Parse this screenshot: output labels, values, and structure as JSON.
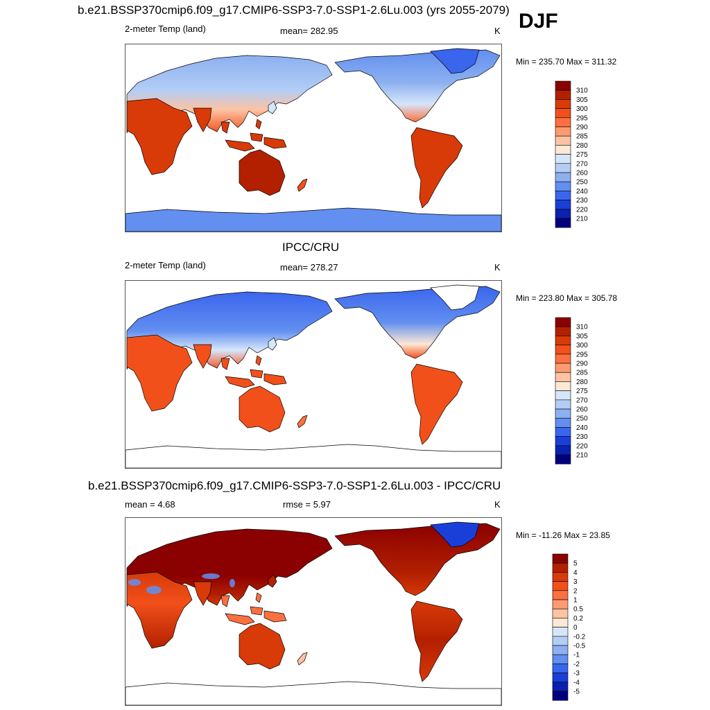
{
  "header": {
    "title": "b.e21.BSSP370cmip6.f09_g17.CMIP6-SSP3-7.0-SSP1-2.6Lu.003 (yrs 2055-2079)",
    "season": "DJF"
  },
  "panels": [
    {
      "id": "model",
      "title": "",
      "left_label": "2-meter Temp (land)",
      "center_label": "mean= 282.95",
      "units": "K",
      "minmax": "Min = 235.70 Max = 311.32",
      "map_style": "model"
    },
    {
      "id": "obs",
      "title": "IPCC/CRU",
      "left_label": "2-meter Temp (land)",
      "center_label": "mean= 278.27",
      "units": "K",
      "minmax": "Min = 223.80 Max = 305.78",
      "map_style": "obs"
    },
    {
      "id": "diff",
      "title": "b.e21.BSSP370cmip6.f09_g17.CMIP6-SSP3-7.0-SSP1-2.6Lu.003 - IPCC/CRU",
      "left_label": "mean =   4.68",
      "center_label": "rmse =   5.97",
      "units": "K",
      "minmax": "Min = -11.26 Max =  23.85",
      "map_style": "diff"
    }
  ],
  "colorbars": {
    "temp": {
      "labels": [
        "310",
        "305",
        "300",
        "295",
        "290",
        "285",
        "280",
        "275",
        "270",
        "260",
        "250",
        "240",
        "230",
        "220",
        "210"
      ],
      "colors": [
        "#8b0000",
        "#b32000",
        "#d83a08",
        "#f2501a",
        "#fb7040",
        "#fc9a70",
        "#fdc3a3",
        "#fde8d6",
        "#d6e6fa",
        "#b3cdf5",
        "#8cb0f0",
        "#628ff0",
        "#3a66ee",
        "#1a3fd8",
        "#0a22ae",
        "#00007f"
      ]
    },
    "diff": {
      "labels": [
        "5",
        "4",
        "3",
        "2",
        "1",
        "0.5",
        "0.2",
        "0",
        "-0.2",
        "-0.5",
        "-1",
        "-2",
        "-3",
        "-4",
        "-5"
      ],
      "colors": [
        "#8b0000",
        "#b32000",
        "#d83a08",
        "#f2501a",
        "#fb7040",
        "#fc9a70",
        "#fdc3a3",
        "#fde8d6",
        "#d6e6fa",
        "#b3cdf5",
        "#8cb0f0",
        "#628ff0",
        "#3a66ee",
        "#1a3fd8",
        "#0a22ae",
        "#00007f"
      ]
    }
  },
  "chart_data": [
    {
      "type": "heatmap",
      "title": "b.e21.BSSP370cmip6.f09_g17.CMIP6-SSP3-7.0-SSP1-2.6Lu.003 (yrs 2055-2079)",
      "variable": "2-meter Temp (land)",
      "units": "K",
      "season": "DJF",
      "mean": 282.95,
      "min": 235.7,
      "max": 311.32,
      "colorbar_levels": [
        310,
        305,
        300,
        295,
        290,
        285,
        280,
        275,
        270,
        260,
        250,
        240,
        230,
        220,
        210
      ]
    },
    {
      "type": "heatmap",
      "title": "IPCC/CRU",
      "variable": "2-meter Temp (land)",
      "units": "K",
      "mean": 278.27,
      "min": 223.8,
      "max": 305.78,
      "colorbar_levels": [
        310,
        305,
        300,
        295,
        290,
        285,
        280,
        275,
        270,
        260,
        250,
        240,
        230,
        220,
        210
      ]
    },
    {
      "type": "heatmap",
      "title": "b.e21.BSSP370cmip6.f09_g17.CMIP6-SSP3-7.0-SSP1-2.6Lu.003 - IPCC/CRU",
      "units": "K",
      "mean": 4.68,
      "rmse": 5.97,
      "min": -11.26,
      "max": 23.85,
      "colorbar_levels": [
        5,
        4,
        3,
        2,
        1,
        0.5,
        0.2,
        0,
        -0.2,
        -0.5,
        -1,
        -2,
        -3,
        -4,
        -5
      ]
    }
  ]
}
